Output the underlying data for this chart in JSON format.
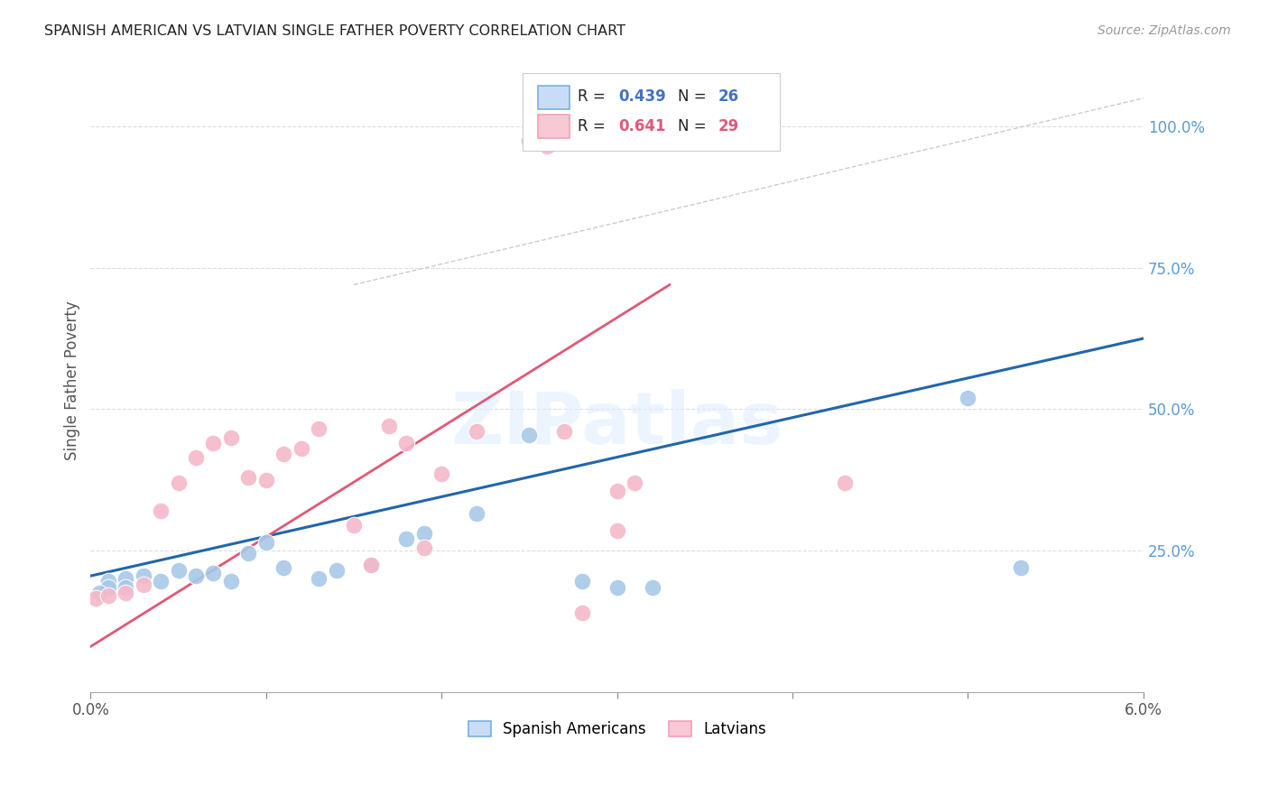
{
  "title": "SPANISH AMERICAN VS LATVIAN SINGLE FATHER POVERTY CORRELATION CHART",
  "source": "Source: ZipAtlas.com",
  "ylabel": "Single Father Poverty",
  "right_yticks": [
    "100.0%",
    "75.0%",
    "50.0%",
    "25.0%"
  ],
  "right_ytick_vals": [
    1.0,
    0.75,
    0.5,
    0.25
  ],
  "xlim": [
    0.0,
    0.06
  ],
  "ylim": [
    0.0,
    1.1
  ],
  "legend_r_blue": "0.439",
  "legend_n_blue": "26",
  "legend_r_pink": "0.641",
  "legend_n_pink": "29",
  "blue_scatter_color": "#a8c8e8",
  "pink_scatter_color": "#f5b8c8",
  "blue_line_color": "#2166ac",
  "pink_line_color": "#e05878",
  "diag_line_color": "#cccccc",
  "watermark": "ZIPatlas",
  "background_color": "#ffffff",
  "grid_color": "#dddddd",
  "blue_legend_face": "#c8ddf5",
  "blue_legend_edge": "#7aafe0",
  "pink_legend_face": "#f9c8d5",
  "pink_legend_edge": "#f4a0b5",
  "spanish_x": [
    0.001,
    0.001,
    0.002,
    0.002,
    0.003,
    0.004,
    0.005,
    0.006,
    0.007,
    0.008,
    0.009,
    0.01,
    0.011,
    0.013,
    0.014,
    0.016,
    0.018,
    0.019,
    0.022,
    0.025,
    0.028,
    0.03,
    0.032,
    0.05,
    0.053,
    0.0005
  ],
  "spanish_y": [
    0.195,
    0.185,
    0.2,
    0.185,
    0.205,
    0.195,
    0.215,
    0.205,
    0.21,
    0.195,
    0.245,
    0.265,
    0.22,
    0.2,
    0.215,
    0.225,
    0.27,
    0.28,
    0.315,
    0.455,
    0.195,
    0.185,
    0.185,
    0.52,
    0.22,
    0.175
  ],
  "latvian_x": [
    0.0003,
    0.001,
    0.002,
    0.003,
    0.004,
    0.005,
    0.006,
    0.007,
    0.008,
    0.009,
    0.01,
    0.011,
    0.012,
    0.013,
    0.015,
    0.016,
    0.017,
    0.018,
    0.019,
    0.02,
    0.022,
    0.025,
    0.026,
    0.027,
    0.028,
    0.03,
    0.031,
    0.043,
    0.03
  ],
  "latvian_y": [
    0.165,
    0.17,
    0.175,
    0.19,
    0.32,
    0.37,
    0.415,
    0.44,
    0.45,
    0.38,
    0.375,
    0.42,
    0.43,
    0.465,
    0.295,
    0.225,
    0.47,
    0.44,
    0.255,
    0.385,
    0.46,
    0.975,
    0.965,
    0.46,
    0.14,
    0.355,
    0.37,
    0.37,
    0.285
  ],
  "blue_line_x": [
    0.0,
    0.06
  ],
  "blue_line_y": [
    0.205,
    0.625
  ],
  "pink_line_x": [
    0.0,
    0.033
  ],
  "pink_line_y": [
    0.08,
    0.72
  ],
  "diag_line_x": [
    0.015,
    0.06
  ],
  "diag_line_y": [
    0.72,
    1.05
  ]
}
